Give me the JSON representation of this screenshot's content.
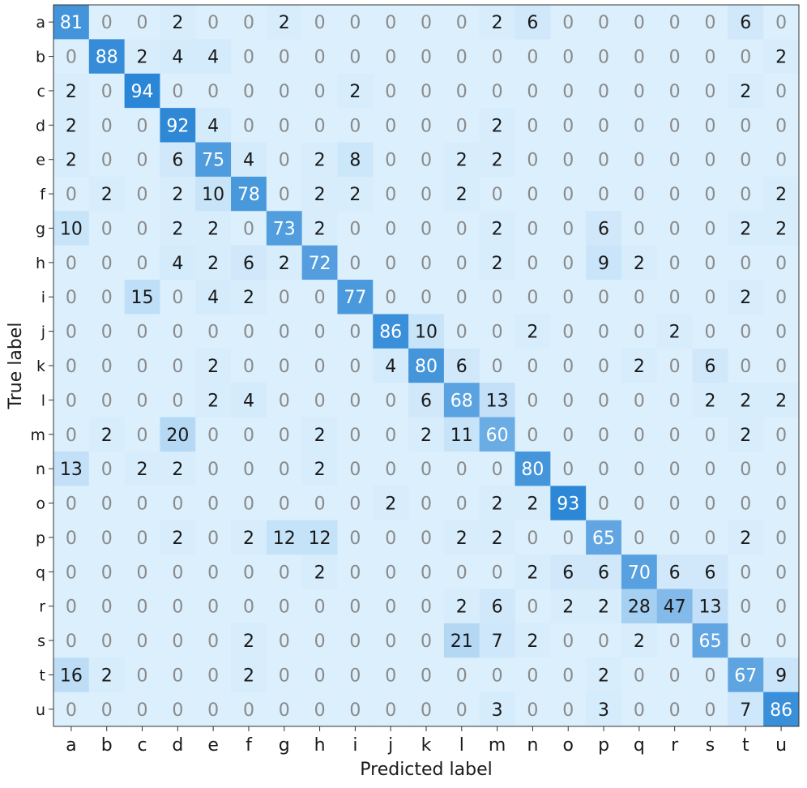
{
  "chart_data": {
    "type": "heatmap",
    "title": "",
    "xlabel": "Predicted label",
    "ylabel": "True label",
    "x_categories": [
      "a",
      "b",
      "c",
      "d",
      "e",
      "f",
      "g",
      "h",
      "i",
      "j",
      "k",
      "l",
      "m",
      "n",
      "o",
      "p",
      "q",
      "r",
      "s",
      "t",
      "u"
    ],
    "y_categories": [
      "a",
      "b",
      "c",
      "d",
      "e",
      "f",
      "g",
      "h",
      "i",
      "j",
      "k",
      "l",
      "m",
      "n",
      "o",
      "p",
      "q",
      "r",
      "s",
      "t",
      "u"
    ],
    "value_range": [
      0,
      100
    ],
    "colormap": {
      "low": "#dbeffd",
      "high": "#1f7fd3"
    },
    "zero_text_color": "#8a8a8a",
    "text_color_dark": "#1a1a1a",
    "text_color_light": "#ffffff",
    "values": [
      [
        81,
        0,
        0,
        2,
        0,
        0,
        2,
        0,
        0,
        0,
        0,
        0,
        2,
        6,
        0,
        0,
        0,
        0,
        0,
        6,
        0
      ],
      [
        0,
        88,
        2,
        4,
        4,
        0,
        0,
        0,
        0,
        0,
        0,
        0,
        0,
        0,
        0,
        0,
        0,
        0,
        0,
        0,
        2
      ],
      [
        2,
        0,
        94,
        0,
        0,
        0,
        0,
        0,
        2,
        0,
        0,
        0,
        0,
        0,
        0,
        0,
        0,
        0,
        0,
        2,
        0
      ],
      [
        2,
        0,
        0,
        92,
        4,
        0,
        0,
        0,
        0,
        0,
        0,
        0,
        2,
        0,
        0,
        0,
        0,
        0,
        0,
        0,
        0
      ],
      [
        2,
        0,
        0,
        6,
        75,
        4,
        0,
        2,
        8,
        0,
        0,
        2,
        2,
        0,
        0,
        0,
        0,
        0,
        0,
        0,
        0
      ],
      [
        0,
        2,
        0,
        2,
        10,
        78,
        0,
        2,
        2,
        0,
        0,
        2,
        0,
        0,
        0,
        0,
        0,
        0,
        0,
        0,
        2
      ],
      [
        10,
        0,
        0,
        2,
        2,
        0,
        73,
        2,
        0,
        0,
        0,
        0,
        2,
        0,
        0,
        6,
        0,
        0,
        0,
        2,
        2
      ],
      [
        0,
        0,
        0,
        4,
        2,
        6,
        2,
        72,
        0,
        0,
        0,
        0,
        2,
        0,
        0,
        9,
        2,
        0,
        0,
        0,
        0
      ],
      [
        0,
        0,
        15,
        0,
        4,
        2,
        0,
        0,
        77,
        0,
        0,
        0,
        0,
        0,
        0,
        0,
        0,
        0,
        0,
        2,
        0
      ],
      [
        0,
        0,
        0,
        0,
        0,
        0,
        0,
        0,
        0,
        86,
        10,
        0,
        0,
        2,
        0,
        0,
        0,
        2,
        0,
        0,
        0
      ],
      [
        0,
        0,
        0,
        0,
        2,
        0,
        0,
        0,
        0,
        4,
        80,
        6,
        0,
        0,
        0,
        0,
        2,
        0,
        6,
        0,
        0
      ],
      [
        0,
        0,
        0,
        0,
        2,
        4,
        0,
        0,
        0,
        0,
        6,
        68,
        13,
        0,
        0,
        0,
        0,
        0,
        2,
        2,
        2
      ],
      [
        0,
        2,
        0,
        20,
        0,
        0,
        0,
        2,
        0,
        0,
        2,
        11,
        60,
        0,
        0,
        0,
        0,
        0,
        0,
        2,
        0
      ],
      [
        13,
        0,
        2,
        2,
        0,
        0,
        0,
        2,
        0,
        0,
        0,
        0,
        0,
        80,
        0,
        0,
        0,
        0,
        0,
        0,
        0
      ],
      [
        0,
        0,
        0,
        0,
        0,
        0,
        0,
        0,
        0,
        2,
        0,
        0,
        2,
        2,
        93,
        0,
        0,
        0,
        0,
        0,
        0
      ],
      [
        0,
        0,
        0,
        2,
        0,
        2,
        12,
        12,
        0,
        0,
        0,
        2,
        2,
        0,
        0,
        65,
        0,
        0,
        0,
        2,
        0
      ],
      [
        0,
        0,
        0,
        0,
        0,
        0,
        0,
        2,
        0,
        0,
        0,
        0,
        0,
        2,
        6,
        6,
        70,
        6,
        6,
        0,
        0
      ],
      [
        0,
        0,
        0,
        0,
        0,
        0,
        0,
        0,
        0,
        0,
        0,
        2,
        6,
        0,
        2,
        2,
        28,
        47,
        13,
        0,
        0
      ],
      [
        0,
        0,
        0,
        0,
        0,
        2,
        0,
        0,
        0,
        0,
        0,
        21,
        7,
        2,
        0,
        0,
        2,
        0,
        65,
        0,
        0
      ],
      [
        16,
        2,
        0,
        0,
        0,
        2,
        0,
        0,
        0,
        0,
        0,
        0,
        0,
        0,
        0,
        2,
        0,
        0,
        0,
        67,
        9
      ],
      [
        0,
        0,
        0,
        0,
        0,
        0,
        0,
        0,
        0,
        0,
        0,
        0,
        3,
        0,
        0,
        3,
        0,
        0,
        0,
        7,
        86
      ]
    ]
  }
}
